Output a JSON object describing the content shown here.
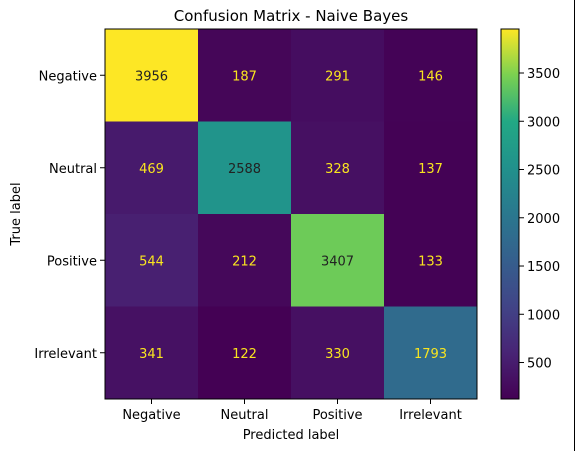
{
  "chart_data": {
    "type": "heatmap",
    "title": "Confusion Matrix - Naive Bayes",
    "xlabel": "Predicted label",
    "ylabel": "True label",
    "x_categories": [
      "Negative",
      "Neutral",
      "Positive",
      "Irrelevant"
    ],
    "y_categories": [
      "Negative",
      "Neutral",
      "Positive",
      "Irrelevant"
    ],
    "values": [
      [
        3956,
        187,
        291,
        146
      ],
      [
        469,
        2588,
        328,
        137
      ],
      [
        544,
        212,
        3407,
        133
      ],
      [
        341,
        122,
        330,
        1793
      ]
    ],
    "colormap": "viridis",
    "colorbar": {
      "range": [
        122,
        3956
      ],
      "ticks": [
        500,
        1000,
        1500,
        2000,
        2500,
        3000,
        3500
      ],
      "tick_labels": [
        "500",
        "1000",
        "1500",
        "2000",
        "2500",
        "3000",
        "3500"
      ]
    },
    "text_colors": {
      "light": "#f9e51f",
      "dark": "#222222"
    }
  }
}
